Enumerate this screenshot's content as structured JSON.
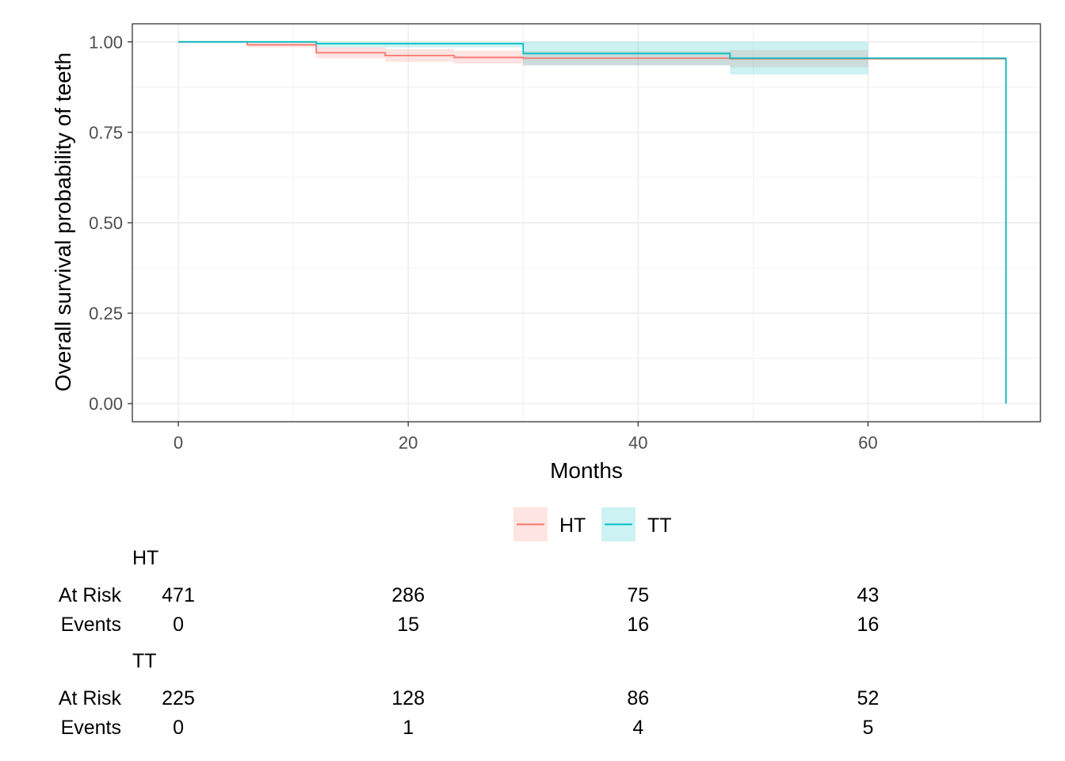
{
  "chart_data": {
    "type": "line",
    "xlabel": "Months",
    "ylabel": "Overall survival probability of teeth",
    "xlim": [
      -4,
      75
    ],
    "ylim": [
      -0.05,
      1.05
    ],
    "x_ticks": [
      0,
      20,
      40,
      60
    ],
    "x_tick_labels": [
      "0",
      "20",
      "40",
      "60"
    ],
    "y_ticks": [
      0,
      0.25,
      0.5,
      0.75,
      1
    ],
    "y_tick_labels": [
      "0.00",
      "0.25",
      "0.50",
      "0.75",
      "1.00"
    ],
    "grid": true,
    "legend_position": "bottom",
    "series": [
      {
        "name": "HT",
        "color": "#F8766D",
        "fill": "#F8766D",
        "step_x": [
          0,
          6,
          12,
          18,
          24,
          30,
          48,
          72,
          72
        ],
        "survival": [
          1.0,
          0.992,
          0.97,
          0.962,
          0.957,
          0.955,
          0.953,
          0.952,
          0.0
        ],
        "ci": [
          {
            "x0": 0,
            "x1": 6,
            "lower": 1.0,
            "upper": 1.0
          },
          {
            "x0": 6,
            "x1": 12,
            "lower": 0.985,
            "upper": 1.0
          },
          {
            "x0": 12,
            "x1": 18,
            "lower": 0.955,
            "upper": 0.985
          },
          {
            "x0": 18,
            "x1": 24,
            "lower": 0.945,
            "upper": 0.98
          },
          {
            "x0": 24,
            "x1": 30,
            "lower": 0.94,
            "upper": 0.975
          },
          {
            "x0": 30,
            "x1": 48,
            "lower": 0.935,
            "upper": 0.975
          },
          {
            "x0": 48,
            "x1": 60,
            "lower": 0.93,
            "upper": 0.977
          }
        ]
      },
      {
        "name": "TT",
        "color": "#00BFC4",
        "fill": "#00BFC4",
        "step_x": [
          0,
          12,
          30,
          48,
          72,
          72
        ],
        "survival": [
          1.0,
          0.995,
          0.968,
          0.955,
          0.953,
          0.0
        ],
        "ci": [
          {
            "x0": 0,
            "x1": 12,
            "lower": 1.0,
            "upper": 1.0
          },
          {
            "x0": 12,
            "x1": 30,
            "lower": 0.985,
            "upper": 1.0
          },
          {
            "x0": 30,
            "x1": 48,
            "lower": 0.935,
            "upper": 1.0
          },
          {
            "x0": 48,
            "x1": 60,
            "lower": 0.91,
            "upper": 1.0
          }
        ]
      }
    ],
    "risk_table": {
      "times": [
        0,
        20,
        40,
        60
      ],
      "row_labels": {
        "at_risk": "At Risk",
        "events": "Events"
      },
      "groups": [
        {
          "name": "HT",
          "at_risk": [
            "471",
            "286",
            "75",
            "43"
          ],
          "events": [
            "0",
            "15",
            "16",
            "16"
          ]
        },
        {
          "name": "TT",
          "at_risk": [
            "225",
            "128",
            "86",
            "52"
          ],
          "events": [
            "0",
            "1",
            "4",
            "5"
          ]
        }
      ]
    }
  }
}
